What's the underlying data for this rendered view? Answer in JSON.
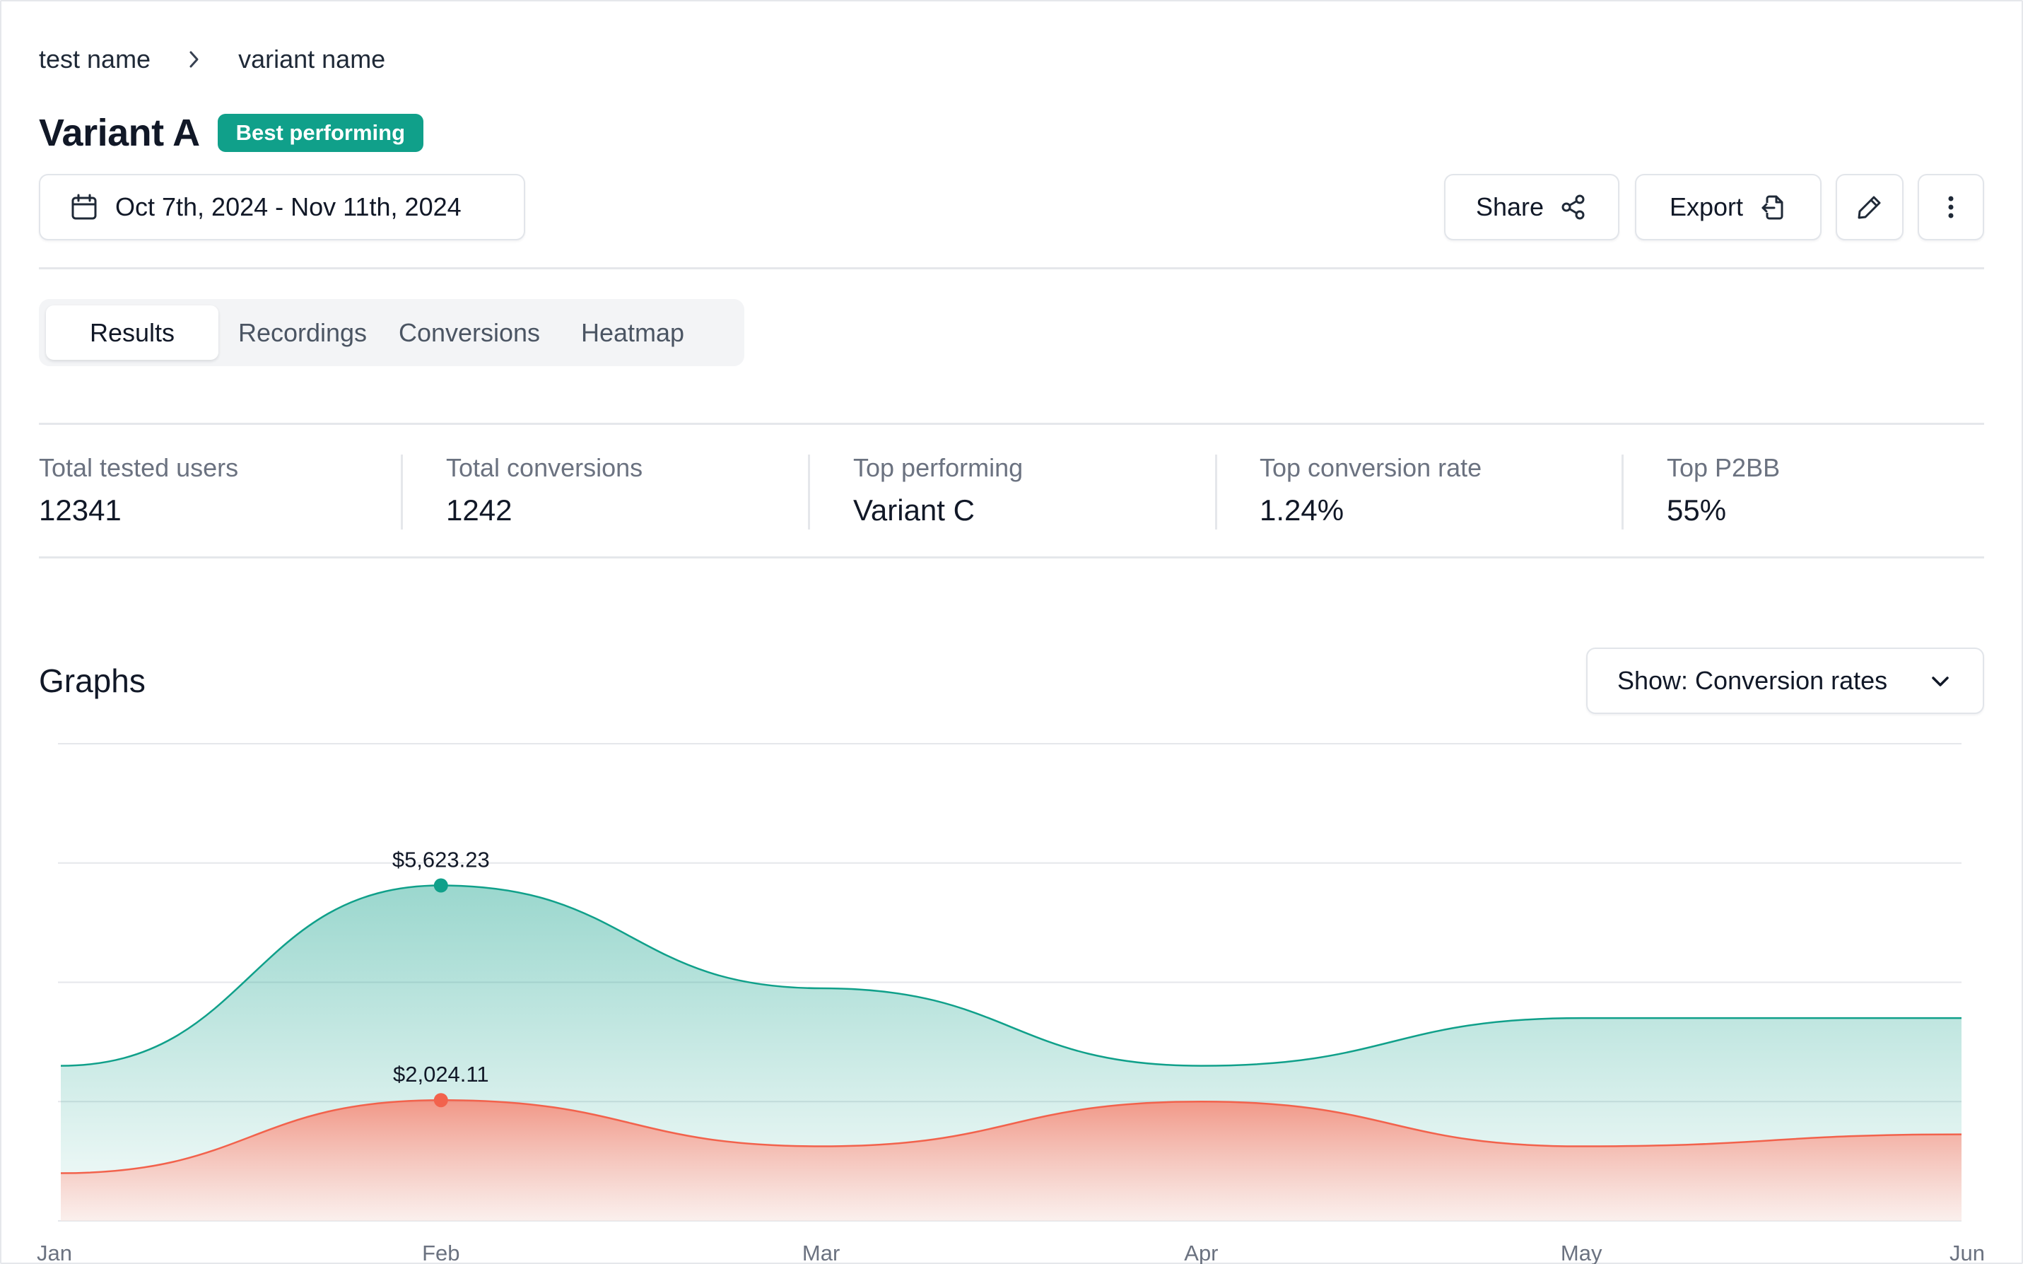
{
  "breadcrumb": {
    "parent": "test name",
    "current": "variant name"
  },
  "header": {
    "title": "Variant A",
    "badge": "Best performing"
  },
  "toolbar": {
    "date_range": "Oct 7th, 2024 - Nov 11th, 2024",
    "share_label": "Share",
    "export_label": "Export",
    "icons": [
      "calendar-icon",
      "share-icon",
      "export-icon",
      "pencil-icon",
      "more-vertical-icon"
    ]
  },
  "tabs": [
    {
      "label": "Results",
      "active": true
    },
    {
      "label": "Recordings",
      "active": false
    },
    {
      "label": "Conversions",
      "active": false
    },
    {
      "label": "Heatmap",
      "active": false
    }
  ],
  "stats": [
    {
      "label": "Total tested users",
      "value": "12341"
    },
    {
      "label": "Total conversions",
      "value": "1242"
    },
    {
      "label": "Top performing",
      "value": "Variant C"
    },
    {
      "label": "Top conversion rate",
      "value": "1.24%"
    },
    {
      "label": "Top P2BB",
      "value": "55%"
    }
  ],
  "graphs": {
    "title": "Graphs",
    "show_label": "Show: Conversion rates"
  },
  "colors": {
    "accent": "#10a08a",
    "series_1": "#10a08a",
    "series_2": "#f2624c",
    "border": "#e5e7eb"
  },
  "chart_data": {
    "type": "area",
    "categories": [
      "Jan",
      "Feb",
      "Mar",
      "Apr",
      "May",
      "Jun"
    ],
    "ylim": [
      0,
      8000
    ],
    "grid": true,
    "legend": "none",
    "series": [
      {
        "values": [
          2600,
          5623.23,
          3900,
          2600,
          3400,
          3400
        ],
        "color": "#10a08a",
        "highlight_index": 1,
        "highlight_label": "$5,623.23"
      },
      {
        "values": [
          800,
          2024.11,
          1250,
          2000,
          1250,
          1450
        ],
        "color": "#f2624c",
        "highlight_index": 1,
        "highlight_label": "$2,024.11"
      }
    ]
  }
}
